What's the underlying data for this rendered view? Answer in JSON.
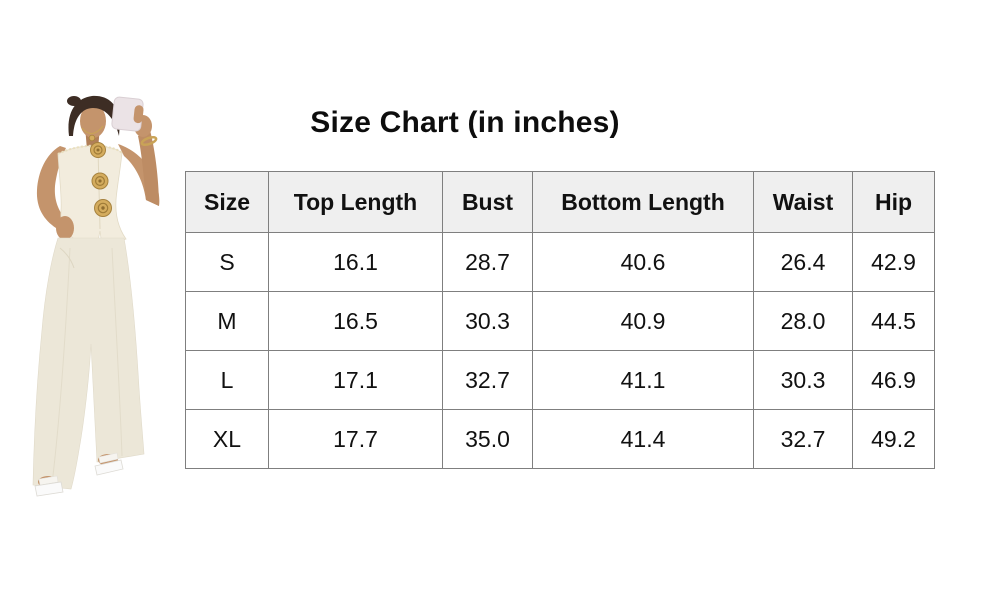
{
  "title": "Size Chart (in inches)",
  "photo": {
    "description": "Mirror selfie of model wearing cream strapless top with three gold rose buttons and matching wide-leg pants, gold necklace and bracelet, white heeled sandals",
    "colors": {
      "garment": "#f0ebdd",
      "gold_accent": "#c9a357",
      "skin": "#c4946c",
      "hair": "#3d2d24"
    }
  },
  "chart_data": {
    "type": "table",
    "title": "Size Chart (in inches)",
    "unit": "inches",
    "columns": [
      "Size",
      "Top Length",
      "Bust",
      "Bottom Length",
      "Waist",
      "Hip"
    ],
    "rows": [
      [
        "S",
        "16.1",
        "28.7",
        "40.6",
        "26.4",
        "42.9"
      ],
      [
        "M",
        "16.5",
        "30.3",
        "40.9",
        "28.0",
        "44.5"
      ],
      [
        "L",
        "17.1",
        "32.7",
        "41.1",
        "30.3",
        "46.9"
      ],
      [
        "XL",
        "17.7",
        "35.0",
        "41.4",
        "32.7",
        "49.2"
      ]
    ]
  },
  "style": {
    "header_background": "#efefef",
    "table_border": "#7f7f7f",
    "text_color": "#111111"
  }
}
